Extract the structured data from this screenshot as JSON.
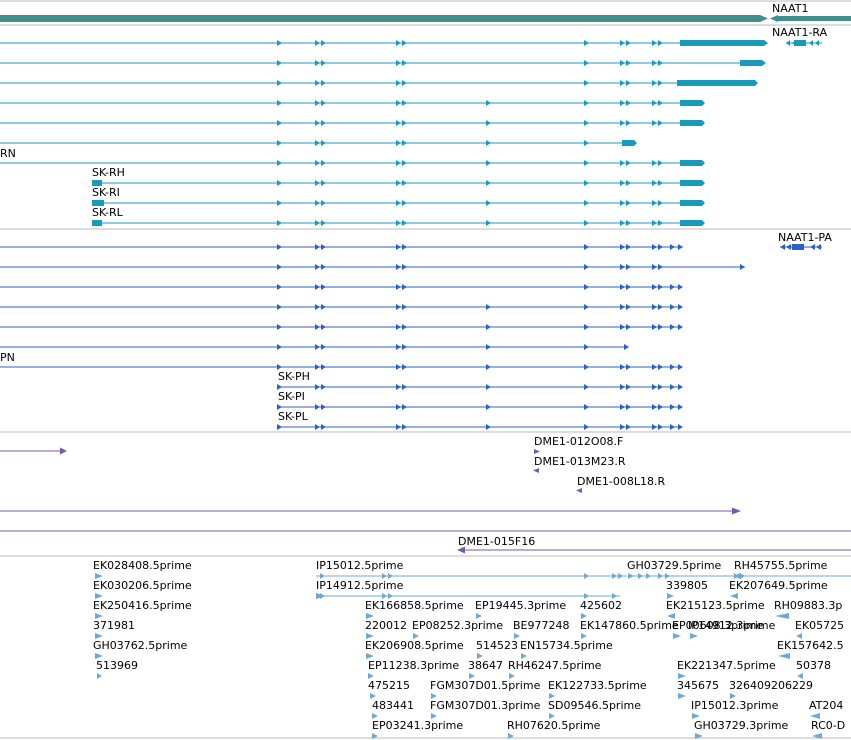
{
  "colors": {
    "gene": "#3f8f8f",
    "flybase_transcript": "#1a9aba",
    "protein": "#2c62c8",
    "clone": "#7a57a8",
    "est": "#6fa8d8",
    "divider": "#bbbbbb"
  },
  "gene_track": {
    "label": "NAAT1"
  },
  "transcript_track": {
    "labels": {
      "top_right": "NAAT1-RA",
      "clip": "RN",
      "rh": "SK-RH",
      "ri": "SK-RI",
      "rl": "SK-RL"
    }
  },
  "protein_track": {
    "labels": {
      "top_right": "NAAT1-PA",
      "clip": "PN",
      "ph": "SK-PH",
      "pi": "SK-PI",
      "pl": "SK-PL"
    }
  },
  "clone_track": {
    "labels": {
      "c1": "DME1-012O08.F",
      "c2": "DME1-013M23.R",
      "c3": "DME1-008L18.R",
      "c4": "DME1-015F16"
    }
  },
  "est_track": {
    "labels": {
      "e01": "EK028408.5prime",
      "e02": "EK030206.5prime",
      "e03": "EK250416.5prime",
      "e04": "371981",
      "e05": "GH03762.5prime",
      "e06": "513969",
      "e07": "IP15012.5prime",
      "e08": "IP14912.5prime",
      "e09": "EK166858.5prime",
      "e10": "EP19445.3prime",
      "e11": "425602",
      "e12": "220012",
      "e13": "EP08252.3prime",
      "e14": "BE977248",
      "e15": "EK147860.5prime",
      "e16": "EK206908.5prime",
      "e17": "514523",
      "e18": "EN15734.5prime",
      "e19": "EP11238.3prime",
      "e20": "38647",
      "e21": "RH46247.5prime",
      "e22": "475215",
      "e23": "FGM307D01.5prime",
      "e24": "EK122733.5prime",
      "e25": "483441",
      "e26": "FGM307D01.3prime",
      "e27": "SD09546.5prime",
      "e28": "EP03241.3prime",
      "e29": "RH07620.5prime",
      "e30": "GH03729.5prime",
      "e31": "RH45755.5prime",
      "e32": "339805",
      "e33": "EK207649.5prime",
      "e34": "EK215123.5prime",
      "e35": "RH09883.3p",
      "e36": "EP00608.3prime",
      "e37": "IP14912.3prime",
      "e38": "EK05725",
      "e39": "EK221347.5prime",
      "e40": "EK157642.5",
      "e41": "345675",
      "e42": "326409206229",
      "e43": "50378",
      "e44": "IP15012.3prime",
      "e45": "AT204",
      "e46": "GH03729.3prime",
      "e47": "RC0-D"
    }
  }
}
